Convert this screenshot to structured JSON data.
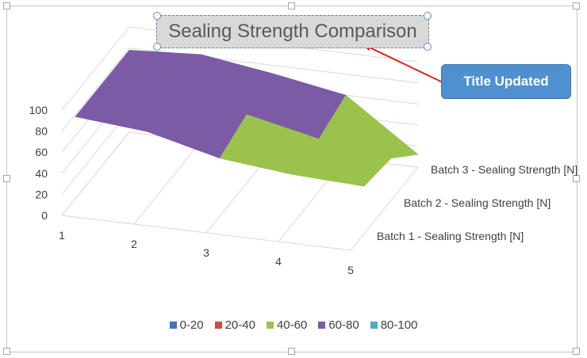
{
  "chart_data": {
    "type": "surface-3d",
    "title": "Sealing Strength Comparison",
    "categories": [
      "1",
      "2",
      "3",
      "4",
      "5"
    ],
    "series": [
      {
        "name": "Batch 1 - Sealing Strength [N]",
        "values": [
          78,
          72,
          55,
          48,
          45
        ]
      },
      {
        "name": "Batch 2 - Sealing Strength [N]",
        "values": [
          78,
          75,
          65,
          50,
          40
        ]
      },
      {
        "name": "Batch 3 - Sealing Strength [N]",
        "values": [
          78,
          82,
          72,
          60,
          12
        ]
      }
    ],
    "y_ticks": [
      "0",
      "20",
      "40",
      "60",
      "80",
      "100"
    ],
    "ylim": [
      0,
      100
    ],
    "bands": [
      {
        "label": "0-20",
        "color": "#4472c4"
      },
      {
        "label": "20-40",
        "color": "#d24a45"
      },
      {
        "label": "40-60",
        "color": "#9bc24c"
      },
      {
        "label": "60-80",
        "color": "#7b5aa6"
      },
      {
        "label": "80-100",
        "color": "#4aacc6"
      }
    ],
    "grid": true,
    "legend_position": "bottom"
  },
  "callout": {
    "label": "Title Updated"
  }
}
